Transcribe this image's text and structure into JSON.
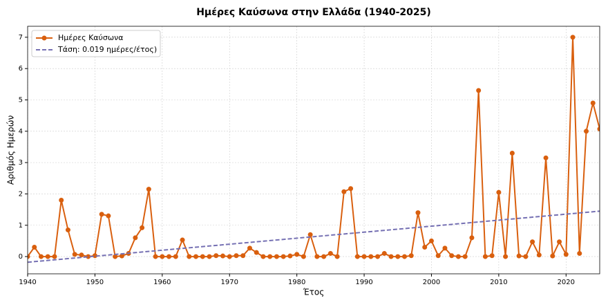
{
  "chart_data": {
    "type": "line",
    "title": "Ημέρες Καύσωνα στην Ελλάδα (1940-2025)",
    "x_label": "Έτος",
    "y_label": "Αριθμός Ημερών",
    "series": [
      {
        "name": "Ημέρες Καύσωνα",
        "color": "#d95f0e",
        "marker": true,
        "dashed": false,
        "x": [
          1940,
          1941,
          1942,
          1943,
          1944,
          1945,
          1946,
          1947,
          1948,
          1949,
          1950,
          1951,
          1952,
          1953,
          1954,
          1955,
          1956,
          1957,
          1958,
          1959,
          1960,
          1961,
          1962,
          1963,
          1964,
          1965,
          1966,
          1967,
          1968,
          1969,
          1970,
          1971,
          1972,
          1973,
          1974,
          1975,
          1976,
          1977,
          1978,
          1979,
          1980,
          1981,
          1982,
          1983,
          1984,
          1985,
          1986,
          1987,
          1988,
          1989,
          1990,
          1991,
          1992,
          1993,
          1994,
          1995,
          1996,
          1997,
          1998,
          1999,
          2000,
          2001,
          2002,
          2003,
          2004,
          2005,
          2006,
          2007,
          2008,
          2009,
          2010,
          2011,
          2012,
          2013,
          2014,
          2015,
          2016,
          2017,
          2018,
          2019,
          2020,
          2021,
          2022,
          2023,
          2024,
          2025
        ],
        "values": [
          0,
          0.3,
          0,
          0,
          0,
          1.8,
          0.85,
          0.07,
          0.05,
          0,
          0.03,
          1.35,
          1.3,
          0,
          0.02,
          0.1,
          0.6,
          0.92,
          2.15,
          0,
          0,
          0,
          0,
          0.53,
          0,
          0,
          0,
          0,
          0.03,
          0.02,
          0,
          0.03,
          0.03,
          0.27,
          0.13,
          0,
          0,
          0,
          0,
          0.02,
          0.07,
          0,
          0.7,
          0,
          0,
          0.1,
          0,
          2.07,
          2.17,
          0,
          0,
          0,
          0,
          0.1,
          0,
          0,
          0,
          0.03,
          1.4,
          0.3,
          0.5,
          0.03,
          0.27,
          0.03,
          0,
          0,
          0.6,
          5.3,
          0,
          0.03,
          2.05,
          0,
          3.3,
          0.02,
          0,
          0.47,
          0.05,
          3.15,
          0.02,
          0.47,
          0.07,
          7.0,
          0.1,
          4.0,
          4.9,
          4.07
        ]
      },
      {
        "name": "Τάση: 0.019 ημέρες/έτος)",
        "color": "#7570b3",
        "marker": false,
        "dashed": true,
        "x": [
          1940,
          2025
        ],
        "values": [
          -0.18,
          1.45
        ]
      }
    ],
    "xlim": [
      1940,
      2025
    ],
    "xticks": [
      1940,
      1950,
      1960,
      1970,
      1980,
      1990,
      2000,
      2010,
      2020
    ],
    "ylim": [
      -0.55,
      7.35
    ],
    "yticks": [
      0,
      1,
      2,
      3,
      4,
      5,
      6,
      7
    ],
    "grid": true,
    "legend": "upper-left"
  }
}
